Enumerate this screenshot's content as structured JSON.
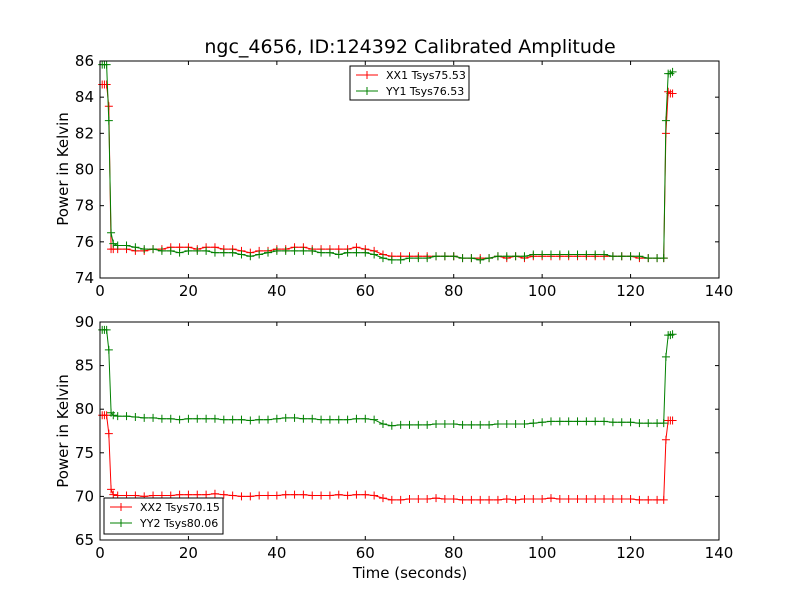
{
  "chart_data": [
    {
      "type": "line",
      "title": "ngc_4656, ID:124392 Calibrated Amplitude",
      "xlabel": "",
      "ylabel": "Power in Kelvin",
      "xlim": [
        0,
        140
      ],
      "ylim": [
        74,
        86
      ],
      "xticks": [
        "0",
        "20",
        "40",
        "60",
        "80",
        "100",
        "120",
        "140"
      ],
      "yticks": [
        "74",
        "76",
        "78",
        "80",
        "82",
        "84",
        "86"
      ],
      "legend_position": "top-center",
      "grid": false,
      "series": [
        {
          "name": "XX1 Tsys75.53",
          "color": "#ff0000",
          "x": [
            0.5,
            1.0,
            1.5,
            2.0,
            2.5,
            3.0,
            4,
            6,
            8,
            10,
            12,
            14,
            16,
            18,
            20,
            22,
            24,
            26,
            28,
            30,
            32,
            34,
            36,
            38,
            40,
            42,
            44,
            46,
            48,
            50,
            52,
            54,
            56,
            58,
            60,
            62,
            64,
            66,
            68,
            70,
            72,
            74,
            76,
            78,
            80,
            82,
            84,
            86,
            88,
            90,
            92,
            94,
            96,
            98,
            100,
            102,
            104,
            106,
            108,
            110,
            112,
            114,
            116,
            118,
            120,
            122,
            124,
            126,
            127.5,
            128.0,
            128.5,
            129.0,
            129.5
          ],
          "y": [
            84.7,
            84.7,
            84.7,
            83.5,
            75.6,
            75.6,
            75.6,
            75.6,
            75.5,
            75.5,
            75.6,
            75.6,
            75.7,
            75.7,
            75.7,
            75.6,
            75.7,
            75.7,
            75.6,
            75.6,
            75.5,
            75.4,
            75.5,
            75.5,
            75.6,
            75.6,
            75.7,
            75.7,
            75.6,
            75.6,
            75.6,
            75.6,
            75.6,
            75.7,
            75.6,
            75.5,
            75.3,
            75.2,
            75.2,
            75.2,
            75.2,
            75.2,
            75.2,
            75.2,
            75.2,
            75.1,
            75.1,
            75.1,
            75.1,
            75.2,
            75.1,
            75.2,
            75.1,
            75.2,
            75.2,
            75.2,
            75.2,
            75.2,
            75.2,
            75.2,
            75.2,
            75.2,
            75.2,
            75.2,
            75.2,
            75.1,
            75.1,
            75.1,
            75.1,
            82.0,
            84.3,
            84.2,
            84.2
          ]
        },
        {
          "name": "YY1 Tsys76.53",
          "color": "#008000",
          "x": [
            0.5,
            1.0,
            1.5,
            2.0,
            2.5,
            3.0,
            4,
            6,
            8,
            10,
            12,
            14,
            16,
            18,
            20,
            22,
            24,
            26,
            28,
            30,
            32,
            34,
            36,
            38,
            40,
            42,
            44,
            46,
            48,
            50,
            52,
            54,
            56,
            58,
            60,
            62,
            64,
            66,
            68,
            70,
            72,
            74,
            76,
            78,
            80,
            82,
            84,
            86,
            88,
            90,
            92,
            94,
            96,
            98,
            100,
            102,
            104,
            106,
            108,
            110,
            112,
            114,
            116,
            118,
            120,
            122,
            124,
            126,
            127.5,
            128.0,
            128.5,
            129.0,
            129.5
          ],
          "y": [
            85.8,
            85.8,
            85.8,
            82.7,
            76.5,
            75.9,
            75.8,
            75.8,
            75.7,
            75.6,
            75.6,
            75.5,
            75.5,
            75.4,
            75.5,
            75.5,
            75.5,
            75.4,
            75.4,
            75.4,
            75.3,
            75.2,
            75.3,
            75.4,
            75.5,
            75.5,
            75.5,
            75.5,
            75.5,
            75.4,
            75.4,
            75.3,
            75.4,
            75.4,
            75.4,
            75.3,
            75.1,
            75.0,
            75.0,
            75.1,
            75.1,
            75.1,
            75.2,
            75.2,
            75.2,
            75.1,
            75.1,
            75.0,
            75.1,
            75.2,
            75.2,
            75.2,
            75.2,
            75.3,
            75.3,
            75.3,
            75.3,
            75.3,
            75.3,
            75.3,
            75.3,
            75.3,
            75.2,
            75.2,
            75.2,
            75.2,
            75.1,
            75.1,
            75.1,
            82.7,
            85.3,
            85.3,
            85.4
          ]
        }
      ]
    },
    {
      "type": "line",
      "title": "",
      "xlabel": "Time (seconds)",
      "ylabel": "Power in Kelvin",
      "xlim": [
        0,
        140
      ],
      "ylim": [
        65,
        90
      ],
      "xticks": [
        "0",
        "20",
        "40",
        "60",
        "80",
        "100",
        "120",
        "140"
      ],
      "yticks": [
        "65",
        "70",
        "75",
        "80",
        "85",
        "90"
      ],
      "legend_position": "lower-left",
      "grid": false,
      "series": [
        {
          "name": "XX2 Tsys70.15",
          "color": "#ff0000",
          "x": [
            0.5,
            1.0,
            1.5,
            2.0,
            2.5,
            3.0,
            4,
            6,
            8,
            10,
            12,
            14,
            16,
            18,
            20,
            22,
            24,
            26,
            28,
            30,
            32,
            34,
            36,
            38,
            40,
            42,
            44,
            46,
            48,
            50,
            52,
            54,
            56,
            58,
            60,
            62,
            64,
            66,
            68,
            70,
            72,
            74,
            76,
            78,
            80,
            82,
            84,
            86,
            88,
            90,
            92,
            94,
            96,
            98,
            100,
            102,
            104,
            106,
            108,
            110,
            112,
            114,
            116,
            118,
            120,
            122,
            124,
            126,
            127.5,
            128.0,
            128.5,
            129.0,
            129.5
          ],
          "y": [
            79.3,
            79.3,
            79.3,
            77.2,
            70.8,
            70.2,
            70.1,
            70.1,
            70.1,
            70.0,
            70.1,
            70.1,
            70.1,
            70.2,
            70.2,
            70.2,
            70.2,
            70.3,
            70.2,
            70.1,
            70.0,
            70.0,
            70.1,
            70.1,
            70.1,
            70.2,
            70.2,
            70.2,
            70.1,
            70.1,
            70.1,
            70.2,
            70.1,
            70.2,
            70.2,
            70.1,
            69.8,
            69.6,
            69.6,
            69.7,
            69.7,
            69.7,
            69.8,
            69.7,
            69.7,
            69.6,
            69.6,
            69.6,
            69.6,
            69.6,
            69.7,
            69.6,
            69.7,
            69.7,
            69.7,
            69.8,
            69.7,
            69.7,
            69.7,
            69.7,
            69.7,
            69.7,
            69.7,
            69.7,
            69.7,
            69.6,
            69.6,
            69.6,
            69.6,
            76.5,
            78.7,
            78.7,
            78.7
          ]
        },
        {
          "name": "YY2 Tsys80.06",
          "color": "#008000",
          "x": [
            0.5,
            1.0,
            1.5,
            2.0,
            2.5,
            3.0,
            4,
            6,
            8,
            10,
            12,
            14,
            16,
            18,
            20,
            22,
            24,
            26,
            28,
            30,
            32,
            34,
            36,
            38,
            40,
            42,
            44,
            46,
            48,
            50,
            52,
            54,
            56,
            58,
            60,
            62,
            64,
            66,
            68,
            70,
            72,
            74,
            76,
            78,
            80,
            82,
            84,
            86,
            88,
            90,
            92,
            94,
            96,
            98,
            100,
            102,
            104,
            106,
            108,
            110,
            112,
            114,
            116,
            118,
            120,
            122,
            124,
            126,
            127.5,
            128.0,
            128.5,
            129.0,
            129.5
          ],
          "y": [
            89.1,
            89.1,
            89.1,
            86.8,
            79.6,
            79.3,
            79.2,
            79.2,
            79.1,
            79.0,
            79.0,
            78.9,
            78.9,
            78.8,
            78.9,
            78.9,
            78.9,
            78.9,
            78.8,
            78.8,
            78.8,
            78.7,
            78.8,
            78.8,
            78.9,
            79.0,
            79.0,
            78.9,
            78.9,
            78.8,
            78.8,
            78.8,
            78.8,
            78.9,
            78.9,
            78.8,
            78.3,
            78.1,
            78.2,
            78.2,
            78.2,
            78.2,
            78.3,
            78.3,
            78.3,
            78.2,
            78.2,
            78.2,
            78.2,
            78.3,
            78.3,
            78.3,
            78.3,
            78.4,
            78.5,
            78.6,
            78.6,
            78.6,
            78.6,
            78.6,
            78.6,
            78.6,
            78.5,
            78.5,
            78.5,
            78.4,
            78.4,
            78.4,
            78.4,
            86.0,
            88.5,
            88.5,
            88.6
          ]
        }
      ]
    }
  ]
}
